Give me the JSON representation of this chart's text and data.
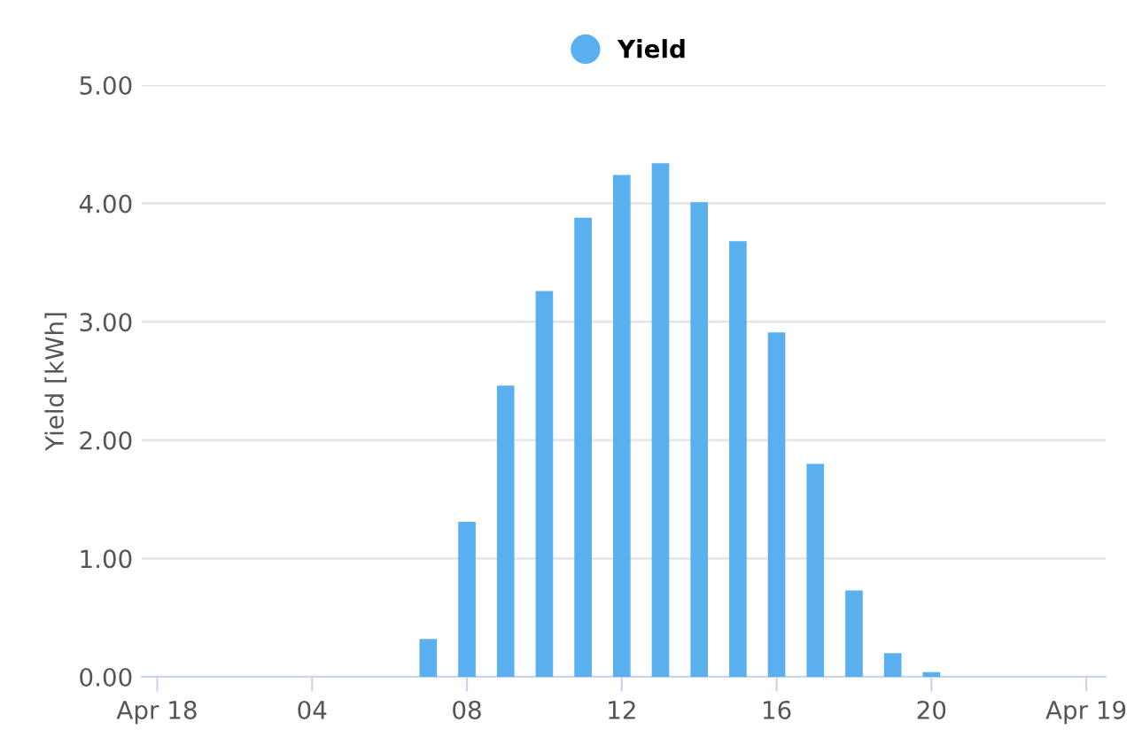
{
  "chart_data": {
    "type": "bar",
    "ylabel": "Yield [kWh]",
    "x": [
      7,
      8,
      9,
      10,
      11,
      12,
      13,
      14,
      15,
      16,
      17,
      18,
      19,
      20
    ],
    "series": [
      {
        "name": "Yield",
        "color": "#5ab0ee",
        "values": [
          0.32,
          1.31,
          2.46,
          3.26,
          3.88,
          4.24,
          4.34,
          4.01,
          3.68,
          2.91,
          1.8,
          0.73,
          0.2,
          0.04
        ]
      }
    ],
    "xlim": [
      -0.4,
      24.5
    ],
    "xticks": [
      {
        "value": 0,
        "label": "Apr 18"
      },
      {
        "value": 4,
        "label": "04"
      },
      {
        "value": 8,
        "label": "08"
      },
      {
        "value": 12,
        "label": "12"
      },
      {
        "value": 16,
        "label": "16"
      },
      {
        "value": 20,
        "label": "20"
      },
      {
        "value": 24,
        "label": "Apr 19"
      }
    ],
    "ylim": [
      0,
      5
    ],
    "yticks": [
      {
        "value": 0,
        "label": "0.00"
      },
      {
        "value": 1,
        "label": "1.00"
      },
      {
        "value": 2,
        "label": "2.00"
      },
      {
        "value": 3,
        "label": "3.00"
      },
      {
        "value": 4,
        "label": "4.00"
      },
      {
        "value": 5,
        "label": "5.00"
      }
    ],
    "grid": "y",
    "legend": "top"
  }
}
